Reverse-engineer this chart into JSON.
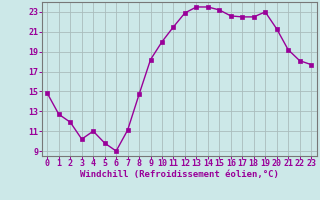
{
  "x": [
    0,
    1,
    2,
    3,
    4,
    5,
    6,
    7,
    8,
    9,
    10,
    11,
    12,
    13,
    14,
    15,
    16,
    17,
    18,
    19,
    20,
    21,
    22,
    23
  ],
  "y": [
    14.8,
    12.7,
    11.9,
    10.2,
    11.0,
    9.8,
    9.0,
    11.1,
    14.7,
    18.2,
    20.0,
    21.5,
    22.9,
    23.5,
    23.5,
    23.2,
    22.6,
    22.5,
    22.5,
    23.0,
    21.3,
    19.2,
    18.1,
    17.7
  ],
  "line_color": "#990099",
  "marker": "s",
  "marker_size": 2.5,
  "bg_color": "#cce8e8",
  "grid_color": "#aabcbc",
  "xlabel": "Windchill (Refroidissement éolien,°C)",
  "xlabel_color": "#990099",
  "tick_color": "#990099",
  "ylim": [
    8.5,
    24.0
  ],
  "xlim": [
    -0.5,
    23.5
  ],
  "yticks": [
    9,
    11,
    13,
    15,
    17,
    19,
    21,
    23
  ],
  "xticks": [
    0,
    1,
    2,
    3,
    4,
    5,
    6,
    7,
    8,
    9,
    10,
    11,
    12,
    13,
    14,
    15,
    16,
    17,
    18,
    19,
    20,
    21,
    22,
    23
  ],
  "spine_color": "#777777",
  "tick_fontsize": 6,
  "xlabel_fontsize": 6.5,
  "linewidth": 1.0
}
